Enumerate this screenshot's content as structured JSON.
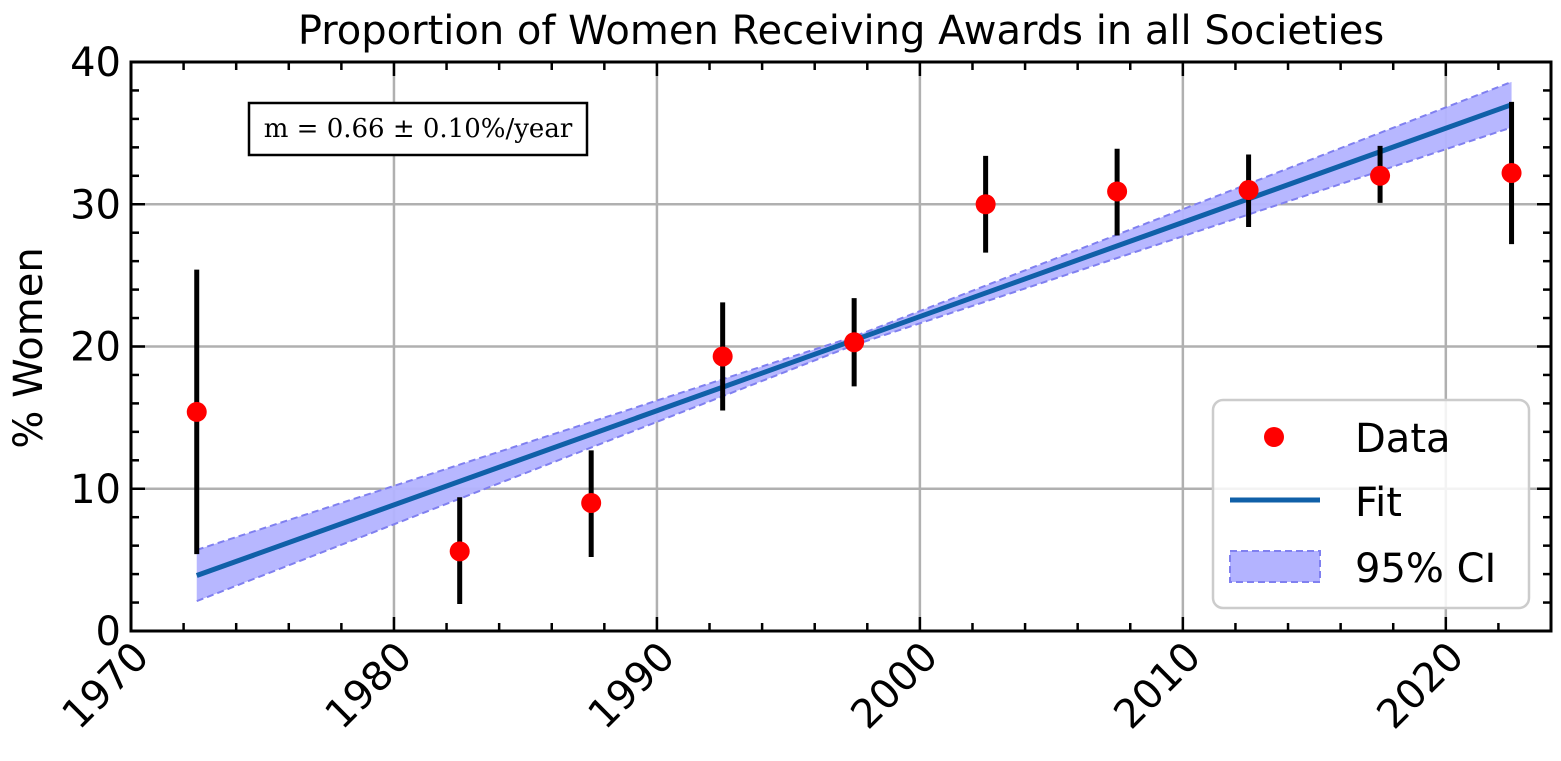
{
  "chart_data": {
    "type": "scatter",
    "title": "Proportion of Women Receiving Awards in all Societies",
    "xlabel": "",
    "ylabel": "% Women",
    "xlim": [
      1970,
      2024
    ],
    "ylim": [
      0,
      40
    ],
    "x_ticks": [
      1970,
      1980,
      1990,
      2000,
      2010,
      2020
    ],
    "y_ticks": [
      0,
      10,
      20,
      30,
      40
    ],
    "grid": true,
    "legend_position": "bottom-right",
    "annotation": "m = 0.66 ± 0.10%/year",
    "series": [
      {
        "name": "Data",
        "kind": "points-with-errorbars",
        "color": "#ff0000",
        "errorbar_color": "#000000",
        "points": [
          {
            "x": 1972.5,
            "y": 15.4,
            "ylow": 5.4,
            "yhigh": 25.4
          },
          {
            "x": 1982.5,
            "y": 5.6,
            "ylow": 1.9,
            "yhigh": 9.4
          },
          {
            "x": 1987.5,
            "y": 9.0,
            "ylow": 5.2,
            "yhigh": 12.7
          },
          {
            "x": 1992.5,
            "y": 19.3,
            "ylow": 15.5,
            "yhigh": 23.1
          },
          {
            "x": 1997.5,
            "y": 20.3,
            "ylow": 17.2,
            "yhigh": 23.4
          },
          {
            "x": 2002.5,
            "y": 30.0,
            "ylow": 26.6,
            "yhigh": 33.4
          },
          {
            "x": 2007.5,
            "y": 30.9,
            "ylow": 27.8,
            "yhigh": 33.9
          },
          {
            "x": 2012.5,
            "y": 31.0,
            "ylow": 28.4,
            "yhigh": 33.5
          },
          {
            "x": 2017.5,
            "y": 32.0,
            "ylow": 30.1,
            "yhigh": 34.1
          },
          {
            "x": 2022.5,
            "y": 32.2,
            "ylow": 27.2,
            "yhigh": 37.2
          }
        ]
      },
      {
        "name": "Fit",
        "kind": "line",
        "color": "#1060a8",
        "x": [
          1972.5,
          2022.5
        ],
        "y": [
          3.9,
          37.0
        ]
      },
      {
        "name": "95% CI",
        "kind": "band",
        "color": "#b3b3ff",
        "edge_color": "#8080f0",
        "x": [
          1972.5,
          1997.5,
          2022.5
        ],
        "upper": [
          5.7,
          20.7,
          38.6
        ],
        "lower": [
          2.1,
          20.1,
          35.4
        ]
      }
    ]
  }
}
